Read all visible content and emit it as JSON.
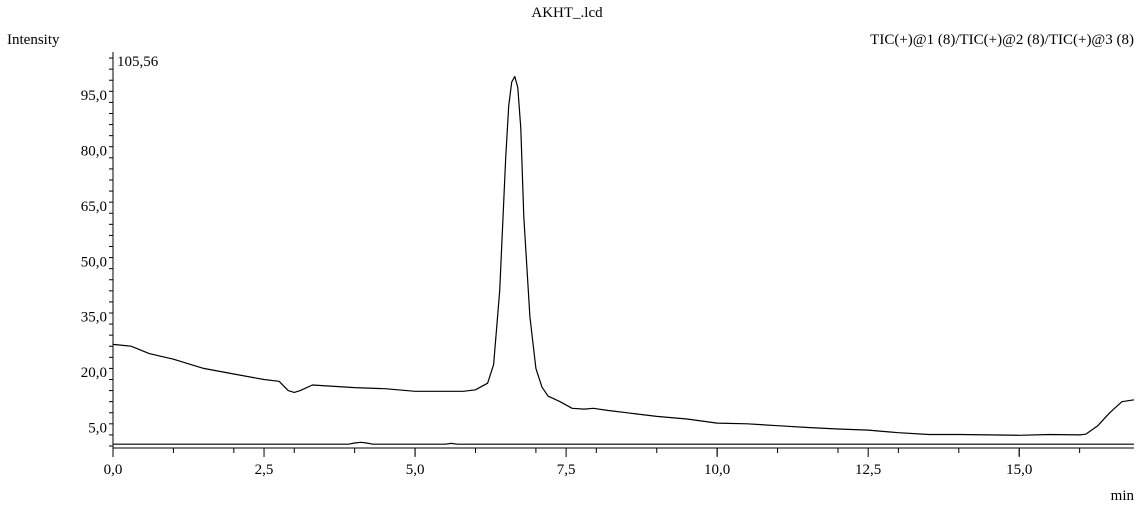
{
  "chart_data": {
    "type": "line",
    "title": "AKHT_.lcd",
    "ylabel": "Intensity",
    "xlabel": "min",
    "channel_label": "TIC(+)@1 (8)/TIC(+)@2 (8)/TIC(+)@3 (8)",
    "max_label": "105,56",
    "xlim": [
      0,
      16.9
    ],
    "ylim": [
      0,
      105.56
    ],
    "x_ticks": [
      {
        "v": 0,
        "label": "0,0"
      },
      {
        "v": 2.5,
        "label": "2,5"
      },
      {
        "v": 5,
        "label": "5,0"
      },
      {
        "v": 7.5,
        "label": "7,5"
      },
      {
        "v": 10,
        "label": "10,0"
      },
      {
        "v": 12.5,
        "label": "12,5"
      },
      {
        "v": 15,
        "label": "15,0"
      }
    ],
    "y_ticks": [
      {
        "v": 5,
        "label": "5,0"
      },
      {
        "v": 20,
        "label": "20,0"
      },
      {
        "v": 35,
        "label": "35,0"
      },
      {
        "v": 50,
        "label": "50,0"
      },
      {
        "v": 65,
        "label": "65,0"
      },
      {
        "v": 80,
        "label": "80,0"
      },
      {
        "v": 95,
        "label": "95,0"
      }
    ],
    "series": [
      {
        "color": "#000000",
        "x": [
          0,
          0.3,
          0.6,
          1.0,
          1.5,
          2.0,
          2.5,
          2.75,
          2.9,
          3.0,
          3.1,
          3.3,
          3.6,
          4.0,
          4.5,
          5.0,
          5.5,
          5.8,
          6.0,
          6.2,
          6.3,
          6.4,
          6.5,
          6.55,
          6.6,
          6.65,
          6.7,
          6.75,
          6.8,
          6.9,
          7.0,
          7.1,
          7.2,
          7.4,
          7.6,
          7.8,
          7.95,
          8.2,
          8.5,
          9.0,
          9.5,
          10.0,
          10.5,
          11.0,
          11.5,
          12.0,
          12.5,
          13.0,
          13.5,
          14.0,
          14.5,
          15.0,
          15.5,
          16.0,
          16.1,
          16.3,
          16.5,
          16.7,
          16.9
        ],
        "y": [
          27.5,
          27.0,
          25.0,
          23.5,
          21.0,
          19.5,
          18.0,
          17.5,
          15.0,
          14.5,
          15.0,
          16.5,
          16.2,
          15.8,
          15.5,
          14.8,
          14.8,
          14.8,
          15.2,
          17.0,
          22.0,
          42.0,
          78.0,
          92.0,
          98.5,
          100.0,
          97.0,
          86.0,
          62.0,
          35.0,
          21.0,
          16.0,
          13.5,
          12.0,
          10.2,
          10.0,
          10.2,
          9.6,
          9.0,
          8.0,
          7.3,
          6.2,
          6.0,
          5.5,
          5.0,
          4.6,
          4.3,
          3.6,
          3.1,
          3.1,
          3.0,
          2.9,
          3.1,
          3.0,
          3.2,
          5.5,
          9.0,
          12.0,
          12.5
        ]
      },
      {
        "color": "#000000",
        "x": [
          0,
          3.9,
          4.0,
          4.1,
          4.2,
          4.3,
          5.5,
          5.6,
          5.7,
          16.9
        ],
        "y": [
          0.5,
          0.5,
          0.8,
          1.0,
          0.8,
          0.5,
          0.5,
          0.7,
          0.5,
          0.5
        ]
      }
    ]
  }
}
